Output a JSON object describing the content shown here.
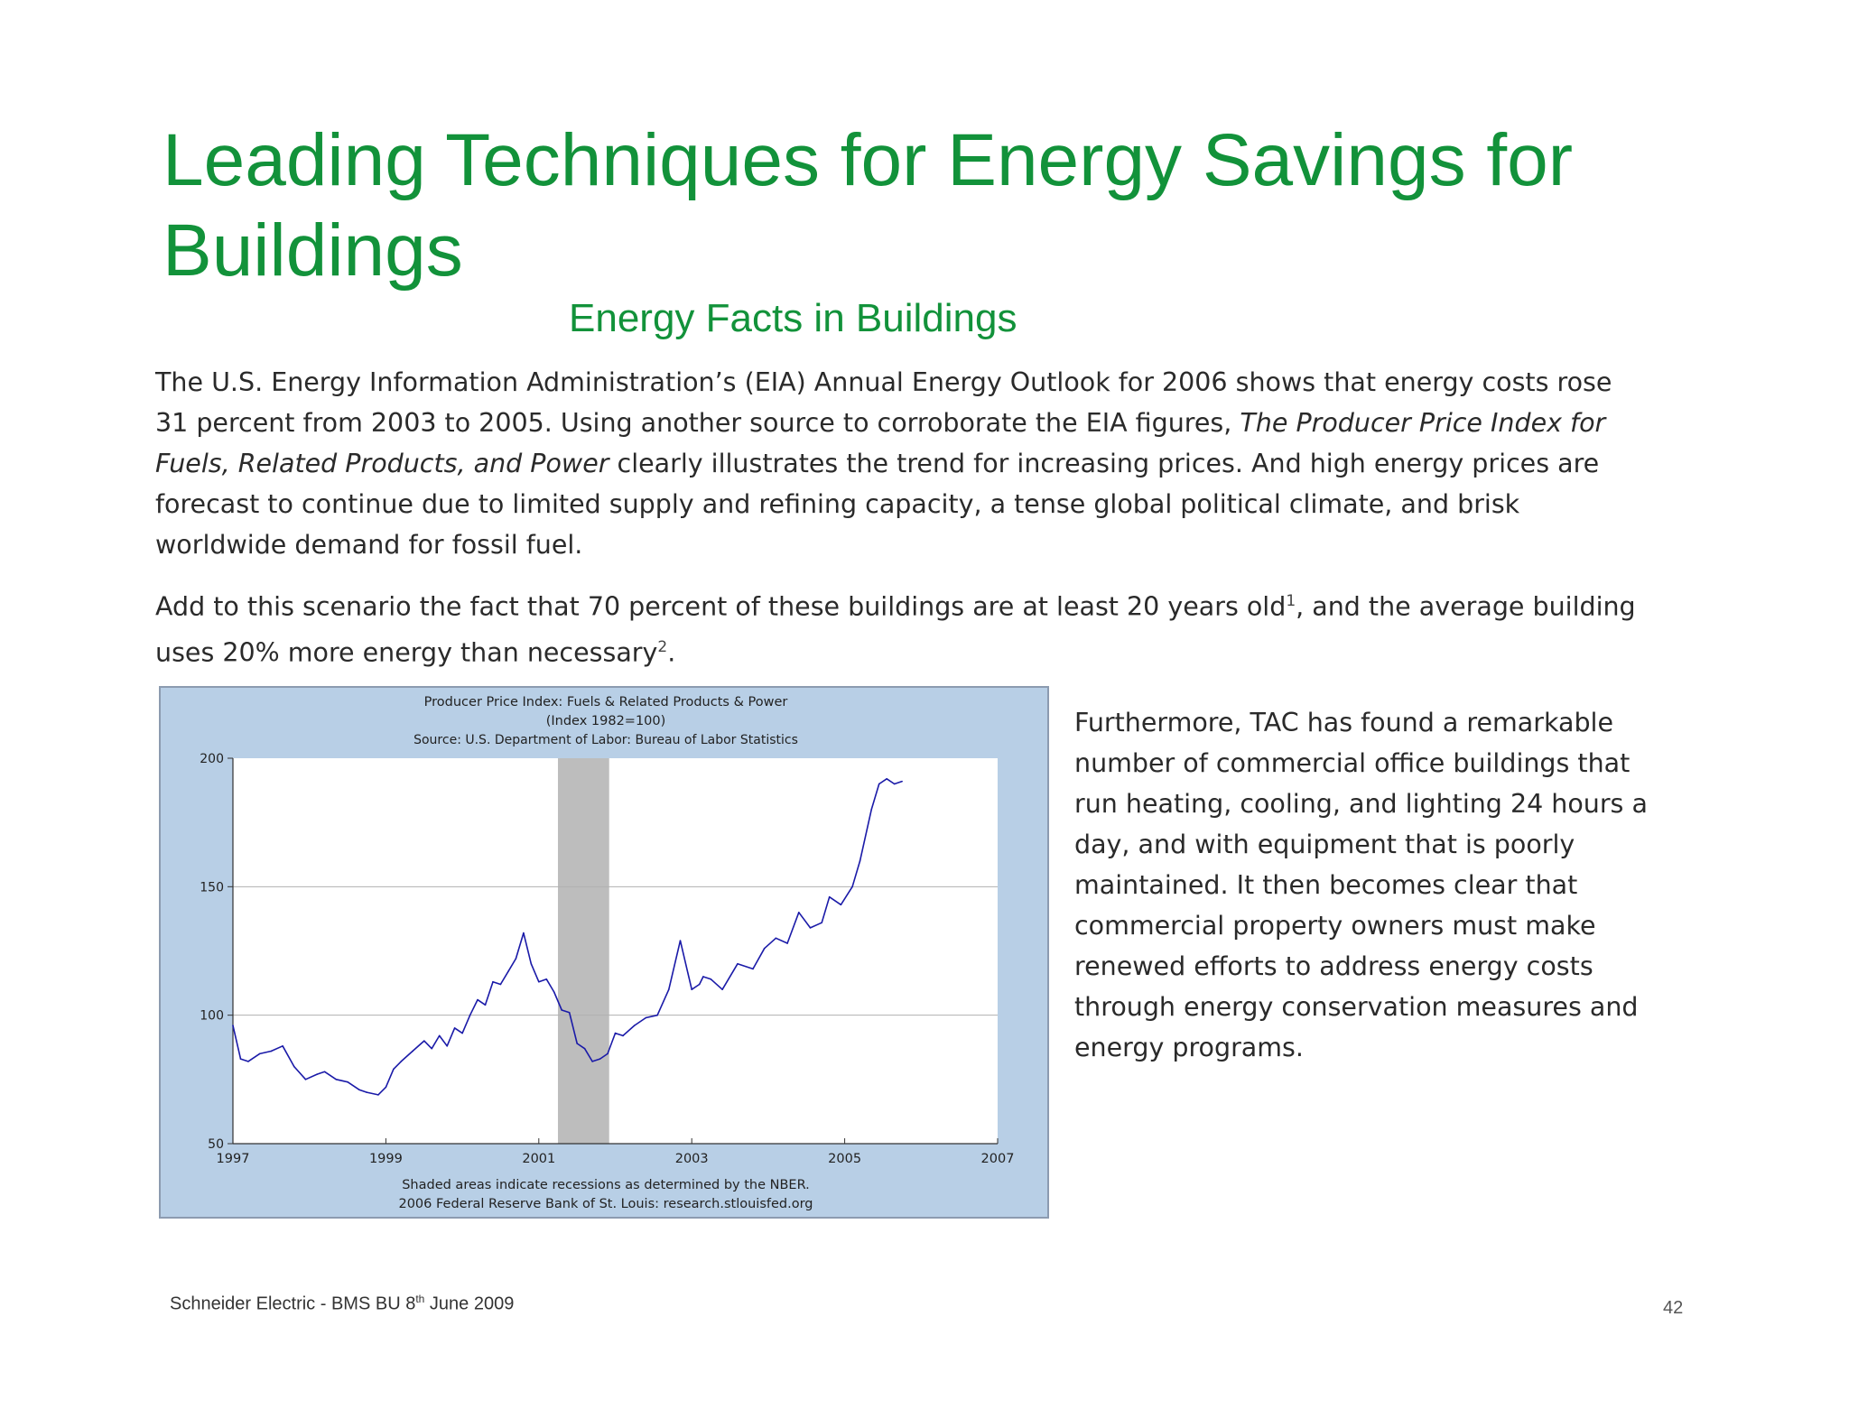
{
  "slide": {
    "title": "Leading Techniques for Energy Savings for Buildings",
    "subtitle": "Energy Facts in Buildings",
    "paragraph1": {
      "part1": "The U.S. Energy Information Administration’s (EIA) Annual Energy Outlook for 2006 shows that energy costs rose 31 percent from 2003 to 2005. Using another source to corroborate the EIA figures, ",
      "italic": "The Producer Price Index for Fuels, Related Products, and Power",
      "part2": " clearly illustrates the trend for increasing prices. And high energy prices are forecast to continue due to limited supply and refining capacity, a tense global political climate, and brisk worldwide demand for fossil fuel."
    },
    "paragraph2": {
      "part1": "Add to this scenario the fact that 70 percent of these buildings are at least 20 years old",
      "sup1": "1",
      "part2": ", and the average building uses 20% more energy than necessary",
      "sup2": "2",
      "part3": "."
    },
    "paragraph3": "Furthermore, TAC has found a remarkable number of commercial office buildings that run heating, cooling, and lighting 24 hours a day, and with equipment that is poorly maintained. It then becomes clear that commercial property owners must make renewed efforts to address energy costs through energy conservation measures and energy programs.",
    "footer": {
      "text": "Schneider Electric - BMS BU 8",
      "sup": "th",
      "text2": " June 2009"
    },
    "page_number": "42"
  },
  "chart_data": {
    "type": "line",
    "title": "Producer Price Index: Fuels & Related Products & Power",
    "subtitle": "(Index 1982=100)",
    "source": "Source: U.S. Department of Labor: Bureau of Labor Statistics",
    "footnote1": "Shaded areas indicate recessions as determined by the NBER.",
    "footnote2": "2006 Federal Reserve Bank of St. Louis: research.stlouisfed.org",
    "xlabel": "",
    "ylabel": "",
    "xlim": [
      1997,
      2007
    ],
    "ylim": [
      50,
      200
    ],
    "x_ticks": [
      "1997",
      "1999",
      "2001",
      "2003",
      "2005",
      "2007"
    ],
    "y_ticks": [
      "50",
      "100",
      "150",
      "200"
    ],
    "grid_y": true,
    "series_color": "#1a1aa8",
    "recession": {
      "start": 2001.25,
      "end": 2001.92,
      "color": "#bdbdbd"
    },
    "series": [
      {
        "x": [
          1997.0,
          1997.1,
          1997.2,
          1997.35,
          1997.5,
          1997.65,
          1997.8,
          1997.95,
          1998.1,
          1998.2,
          1998.35,
          1998.5,
          1998.65,
          1998.75,
          1998.9,
          1999.0,
          1999.1,
          1999.2,
          1999.35,
          1999.5,
          1999.6,
          1999.7,
          1999.8,
          1999.9,
          2000.0,
          2000.1,
          2000.2,
          2000.3,
          2000.4,
          2000.5,
          2000.6,
          2000.7,
          2000.8,
          2000.9,
          2001.0,
          2001.1,
          2001.2,
          2001.3,
          2001.4,
          2001.5,
          2001.6,
          2001.7,
          2001.8,
          2001.9,
          2002.0,
          2002.1,
          2002.25,
          2002.4,
          2002.55,
          2002.7,
          2002.85,
          2003.0,
          2003.1,
          2003.15,
          2003.25,
          2003.4,
          2003.6,
          2003.8,
          2003.95,
          2004.1,
          2004.25,
          2004.4,
          2004.55,
          2004.7,
          2004.8,
          2004.95,
          2005.1,
          2005.2,
          2005.35,
          2005.45,
          2005.55,
          2005.65,
          2005.75
        ],
        "y": [
          96,
          83,
          82,
          85,
          86,
          88,
          80,
          75,
          77,
          78,
          75,
          74,
          71,
          70,
          69,
          72,
          79,
          82,
          86,
          90,
          87,
          92,
          88,
          95,
          93,
          100,
          106,
          104,
          113,
          112,
          117,
          122,
          132,
          120,
          113,
          114,
          109,
          102,
          101,
          89,
          87,
          82,
          83,
          85,
          93,
          92,
          96,
          99,
          100,
          110,
          129,
          110,
          112,
          115,
          114,
          110,
          120,
          118,
          126,
          130,
          128,
          140,
          134,
          136,
          146,
          143,
          150,
          160,
          180,
          190,
          192,
          190,
          191
        ]
      }
    ]
  }
}
